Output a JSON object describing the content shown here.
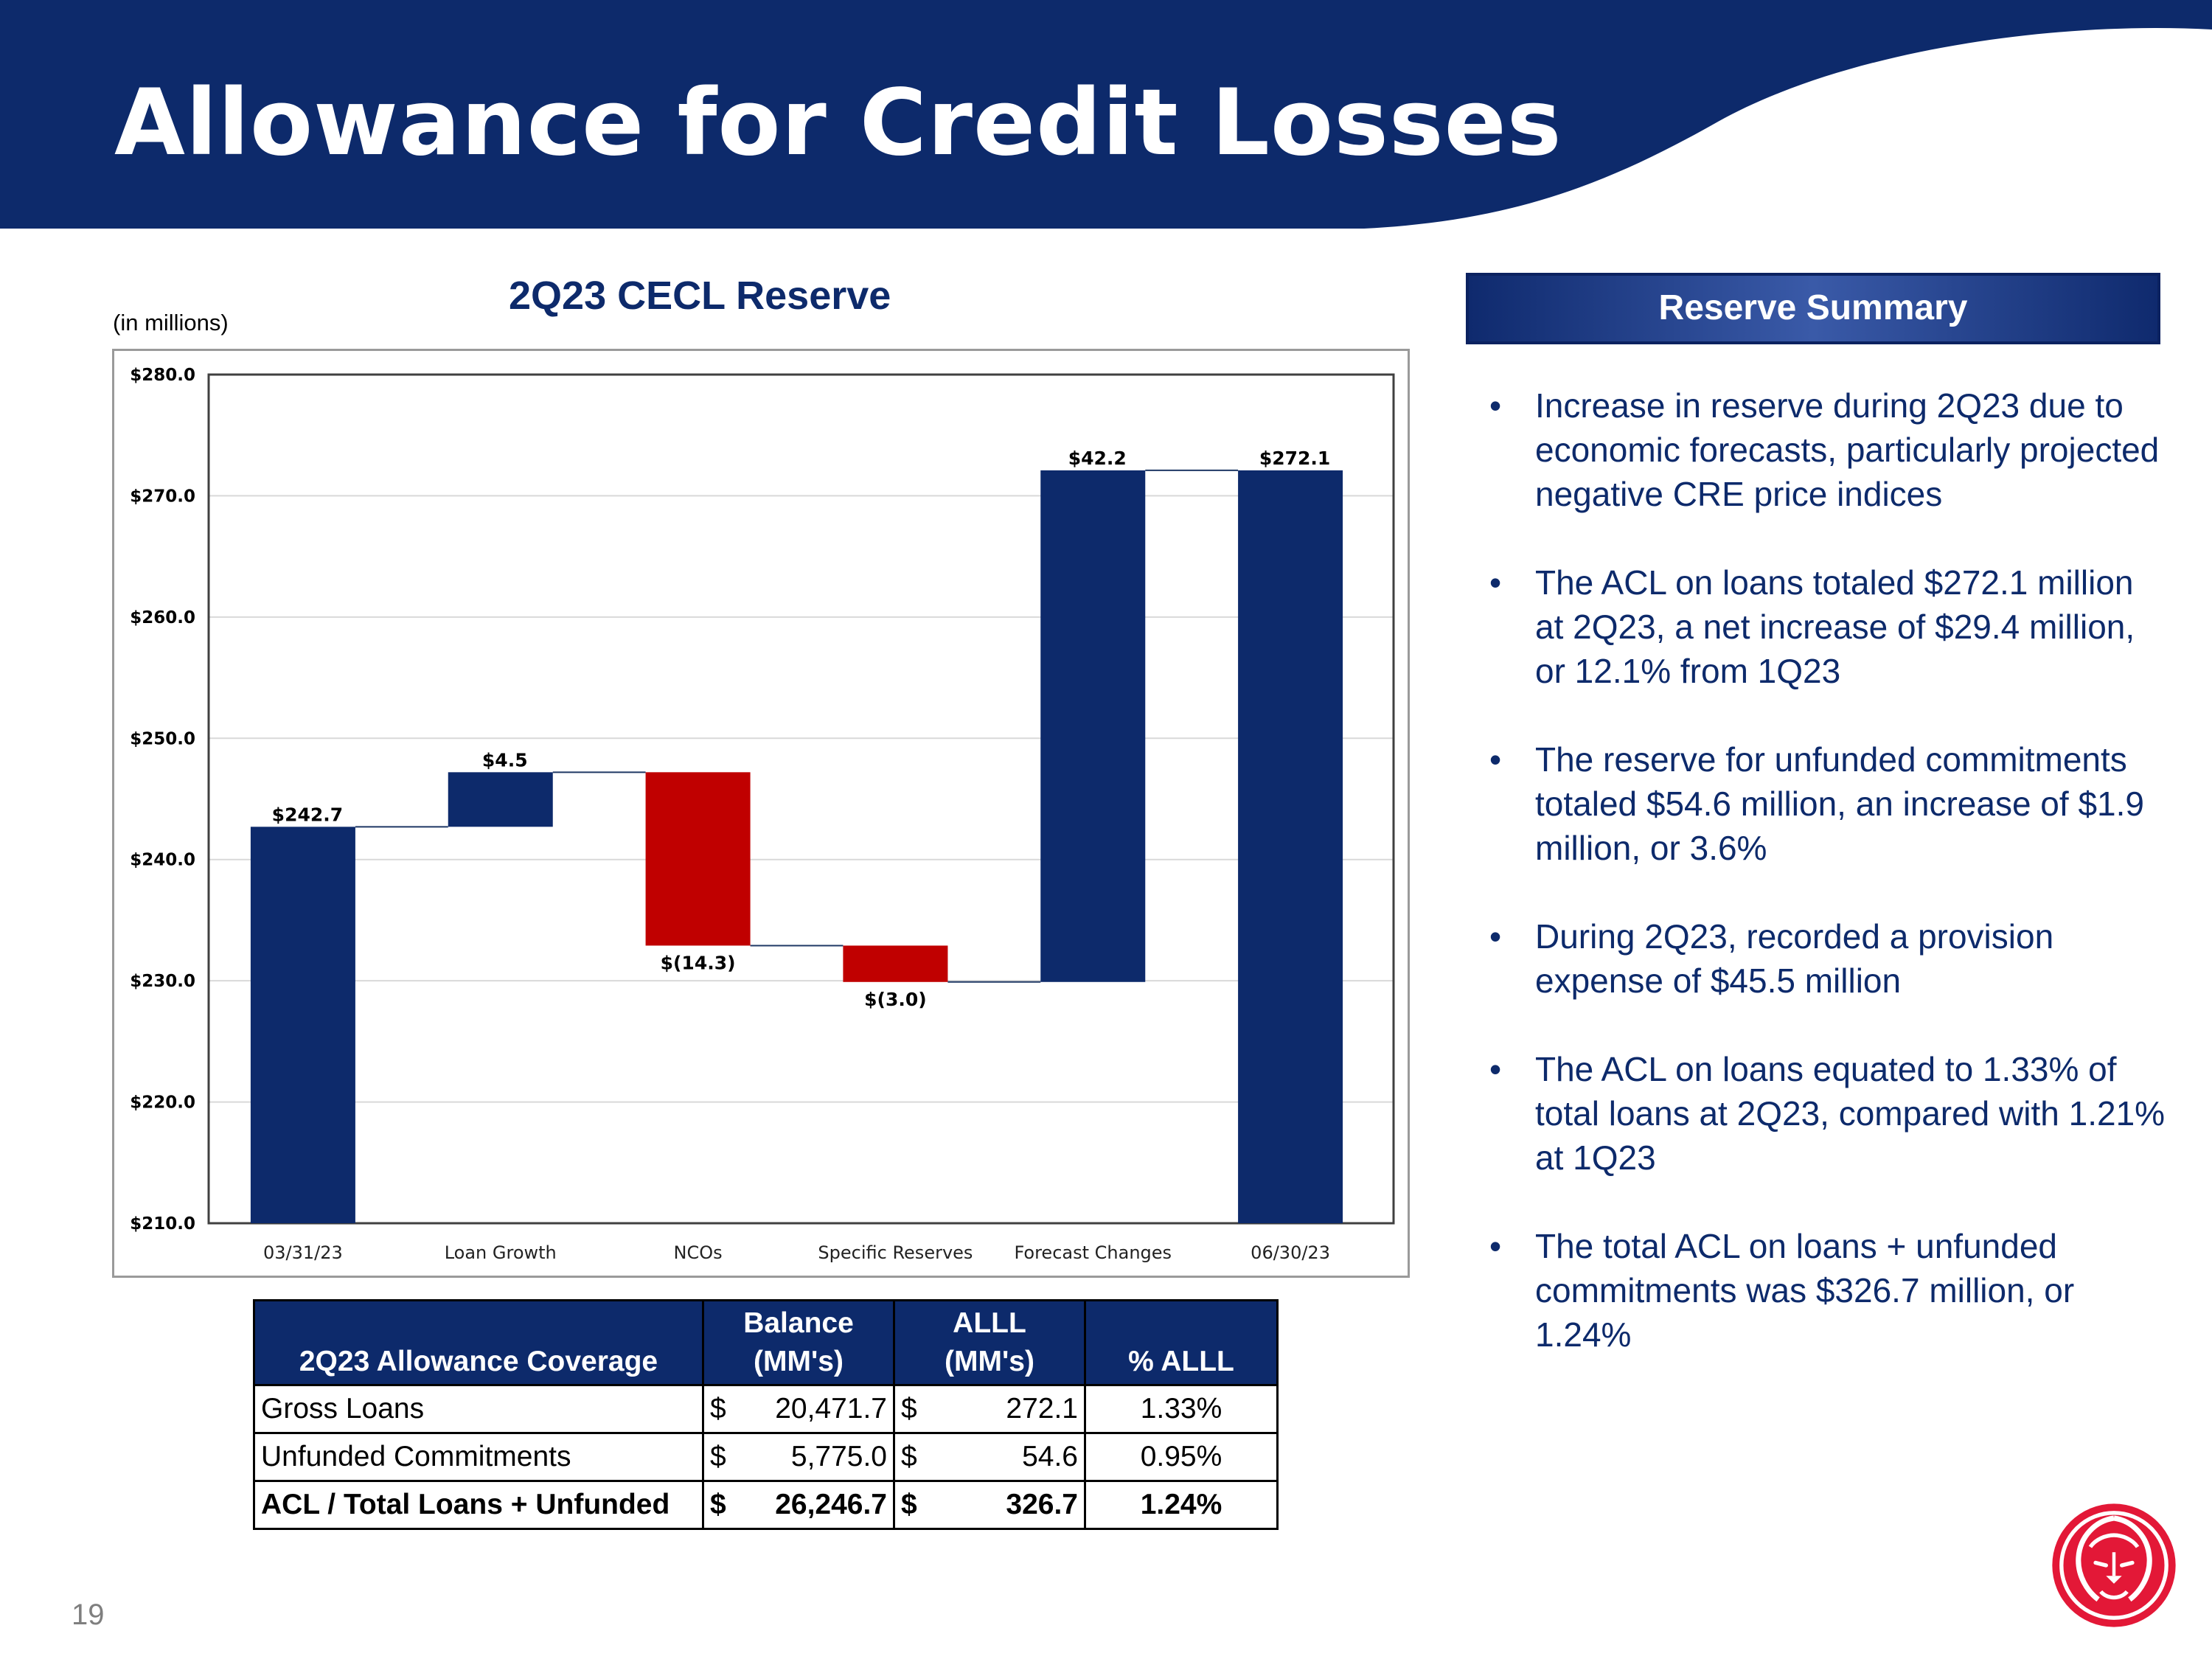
{
  "slide": {
    "title": "Allowance for Credit Losses",
    "units_note": "(in millions)",
    "page_number": "19"
  },
  "colors": {
    "navy": "#0d2a6b",
    "red": "#c00000",
    "logo_red": "#e31837"
  },
  "chart_data": {
    "type": "waterfall",
    "title": "2Q23 CECL Reserve",
    "ylabel": "",
    "xlabel": "",
    "ylim": [
      210,
      280
    ],
    "yticks": [
      210,
      220,
      230,
      240,
      250,
      260,
      270,
      280
    ],
    "ytick_labels": [
      "$210.0",
      "$220.0",
      "$230.0",
      "$240.0",
      "$250.0",
      "$260.0",
      "$270.0",
      "$280.0"
    ],
    "grid": true,
    "categories": [
      "03/31/23",
      "Loan Growth",
      "NCOs",
      "Specific Reserves",
      "Forecast Changes",
      "06/30/23"
    ],
    "bars": [
      {
        "category": "03/31/23",
        "start": 210.0,
        "end": 242.7,
        "kind": "total",
        "label": "$242.7"
      },
      {
        "category": "Loan Growth",
        "start": 242.7,
        "end": 247.2,
        "kind": "increase",
        "label": "$4.5"
      },
      {
        "category": "NCOs",
        "start": 247.2,
        "end": 232.9,
        "kind": "decrease",
        "label": "$(14.3)"
      },
      {
        "category": "Specific Reserves",
        "start": 232.9,
        "end": 229.9,
        "kind": "decrease",
        "label": "$(3.0)"
      },
      {
        "category": "Forecast Changes",
        "start": 229.9,
        "end": 272.1,
        "kind": "increase",
        "label": "$42.2"
      },
      {
        "category": "06/30/23",
        "start": 210.0,
        "end": 272.1,
        "kind": "total",
        "label": "$272.1"
      }
    ]
  },
  "coverage_table": {
    "headers": {
      "title": "2Q23 Allowance Coverage",
      "balance_line1": "Balance",
      "balance_line2": "(MM's)",
      "alll_line1": "ALLL",
      "alll_line2": "(MM's)",
      "pct": "% ALLL"
    },
    "rows": [
      {
        "label": "Gross Loans",
        "bal_sym": "$",
        "balance": "20,471.7",
        "alll_sym": "$",
        "alll": "272.1",
        "pct": "1.33%"
      },
      {
        "label": "Unfunded Commitments",
        "bal_sym": "$",
        "balance": "5,775.0",
        "alll_sym": "$",
        "alll": "54.6",
        "pct": "0.95%"
      },
      {
        "label": "ACL / Total Loans + Unfunded",
        "bal_sym": "$",
        "balance": "26,246.7",
        "alll_sym": "$",
        "alll": "326.7",
        "pct": "1.24%"
      }
    ]
  },
  "summary": {
    "header": "Reserve Summary",
    "bullet": "•",
    "items": [
      "Increase in reserve during 2Q23 due to economic forecasts, particularly projected negative CRE price indices",
      "The ACL on loans totaled $272.1 million at 2Q23, a net increase of $29.4 million, or 12.1% from 1Q23",
      "The reserve for unfunded commitments totaled $54.6 million, an increase of $1.9 million, or 3.6%",
      "During 2Q23, recorded a provision expense of $45.5 million",
      "The ACL on loans equated to 1.33% of total loans at 2Q23, compared with 1.21% at 1Q23",
      "The total ACL on loans + unfunded commitments was $326.7 million, or 1.24%"
    ]
  },
  "logo": {
    "icon": "lion-head-icon"
  }
}
